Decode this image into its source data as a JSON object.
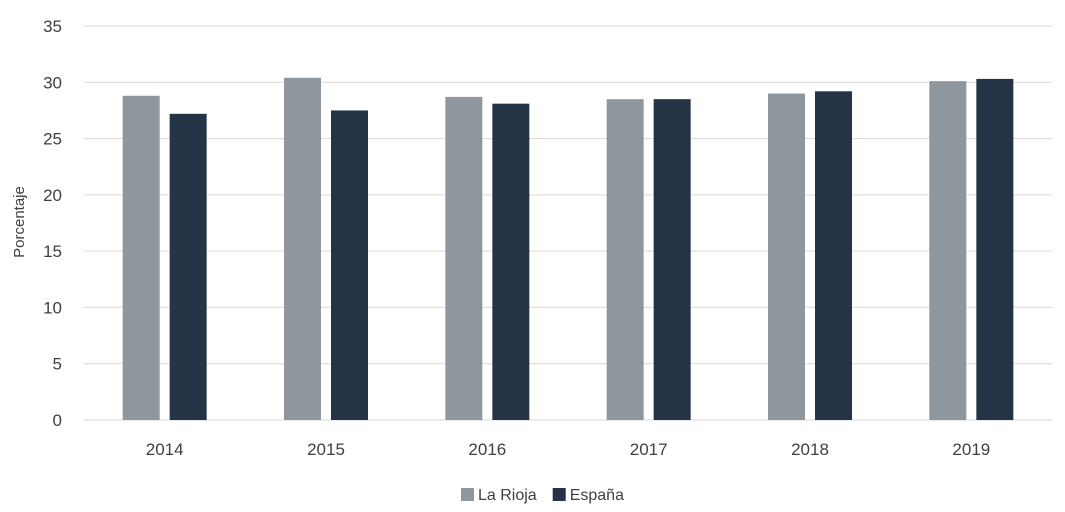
{
  "chart_data": {
    "type": "bar",
    "categories": [
      "2014",
      "2015",
      "2016",
      "2017",
      "2018",
      "2019"
    ],
    "series": [
      {
        "name": "La Rioja",
        "color": "#8f979e",
        "values": [
          28.8,
          30.4,
          28.7,
          28.5,
          29.0,
          30.1
        ]
      },
      {
        "name": "España",
        "color": "#253445",
        "values": [
          27.2,
          27.5,
          28.1,
          28.5,
          29.2,
          30.3
        ]
      }
    ],
    "title": "",
    "xlabel": "",
    "ylabel": "Porcentaje",
    "ylim": [
      0,
      35
    ],
    "yticks": [
      0,
      5,
      10,
      15,
      20,
      25,
      30,
      35
    ],
    "grid": true,
    "legend_position": "bottom"
  }
}
